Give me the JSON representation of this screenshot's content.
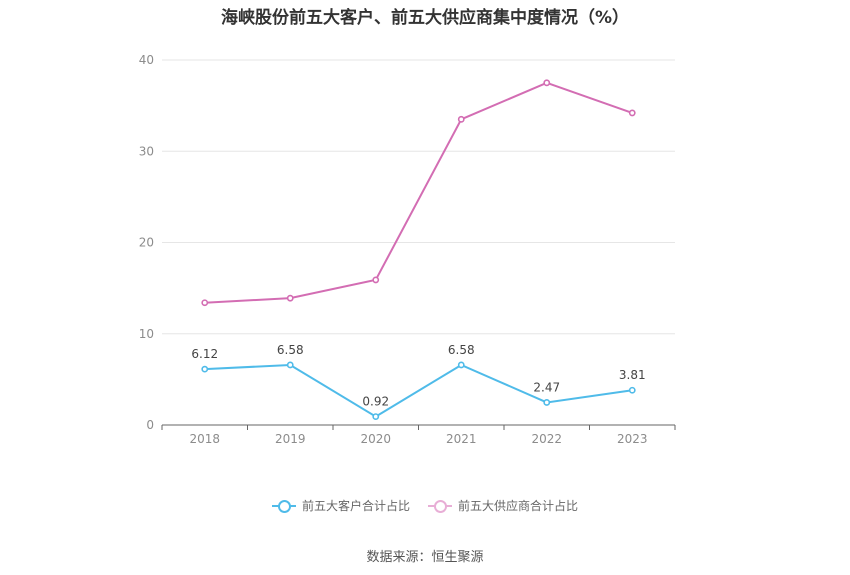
{
  "chart_data": {
    "type": "line",
    "title": "海峡股份前五大客户、前五大供应商集中度情况（%）",
    "x": [
      "2018",
      "2019",
      "2020",
      "2021",
      "2022",
      "2023"
    ],
    "ylim": [
      0,
      40
    ],
    "yticks": [
      0,
      10,
      20,
      30,
      40
    ],
    "grid": true,
    "legend_position": "bottom",
    "series": [
      {
        "name": "前五大客户合计占比",
        "color": "#4fbbe9",
        "values": [
          6.12,
          6.58,
          0.92,
          6.58,
          2.47,
          3.81
        ],
        "labels": [
          "6.12",
          "6.58",
          "0.92",
          "6.58",
          "2.47",
          "3.81"
        ]
      },
      {
        "name": "前五大供应商合计占比",
        "color": "#d36db3",
        "values": [
          13.4,
          13.9,
          15.9,
          33.5,
          37.5,
          34.2
        ]
      }
    ]
  },
  "source": "数据来源：恒生聚源"
}
